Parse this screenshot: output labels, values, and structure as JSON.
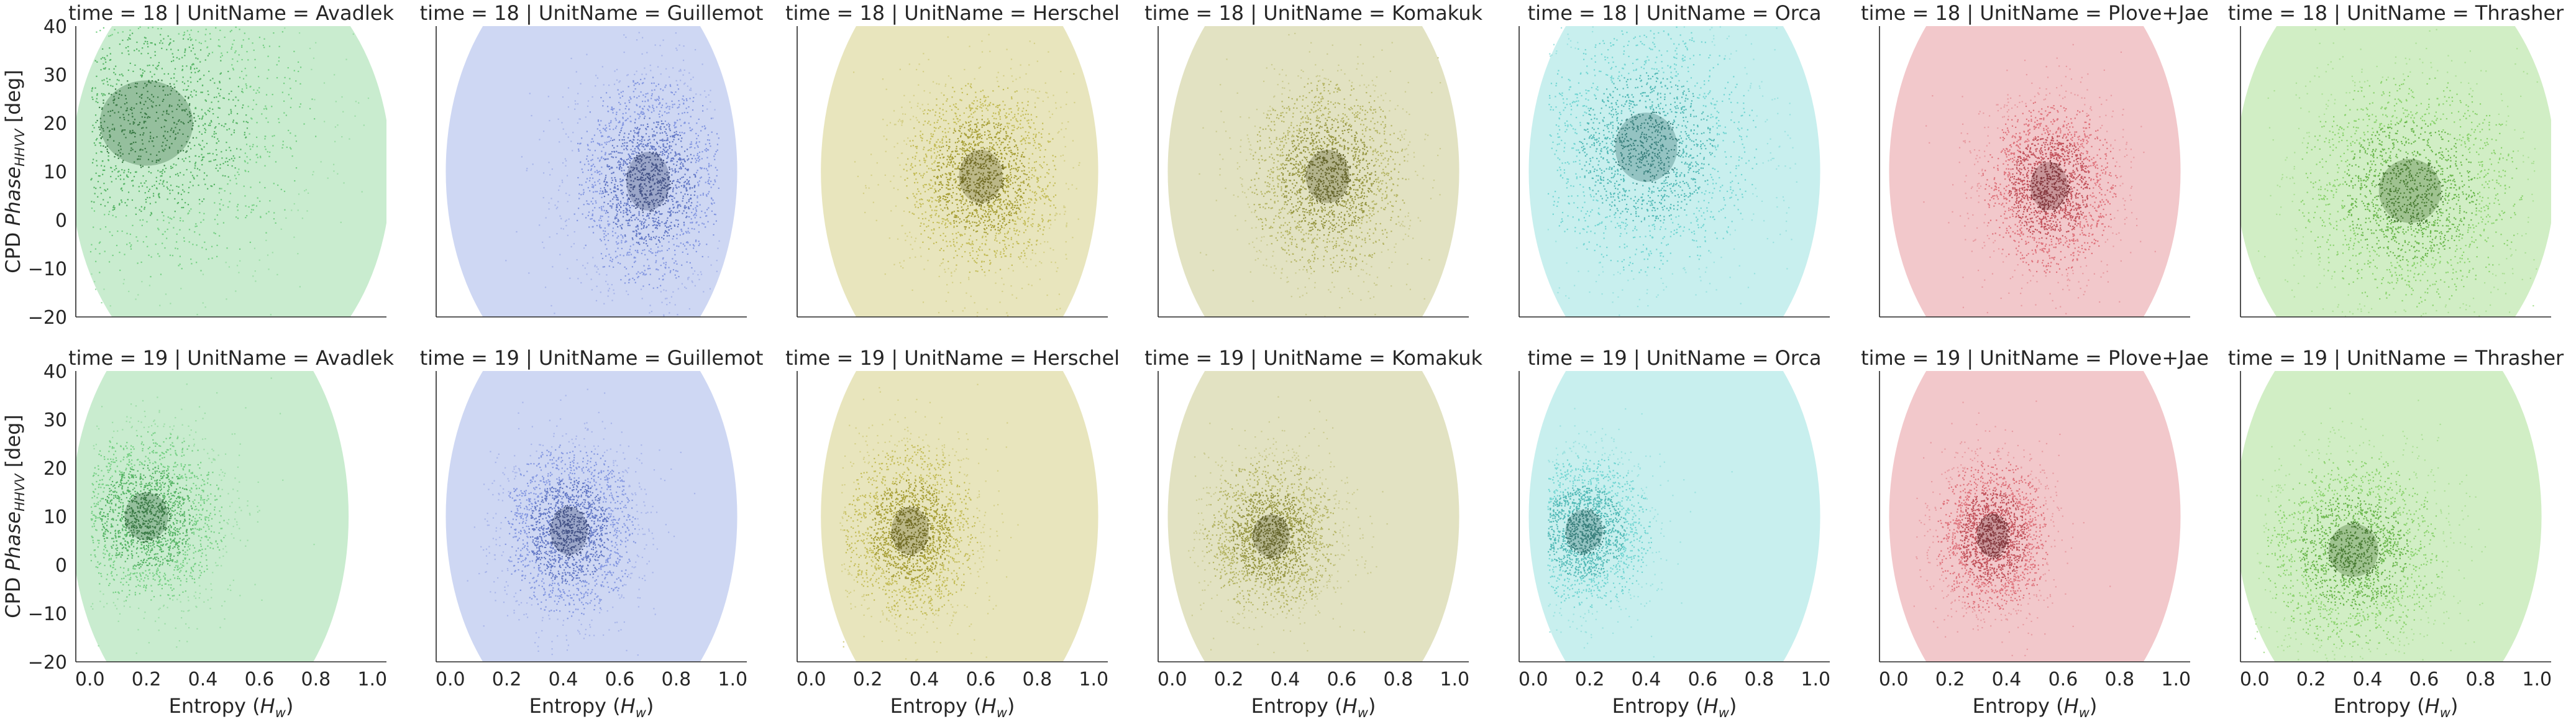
{
  "chart_data": {
    "type": "scatter",
    "layout": "facet grid: rows = time, columns = UnitName, shared axes, y tick labels on first column only, x tick labels on bottom row only",
    "row_var": "time",
    "col_var": "UnitName",
    "rows": [
      18,
      19
    ],
    "cols": [
      "Avadlek",
      "Guillemot",
      "Herschel",
      "Komakuk",
      "Orca",
      "Plove+Jae",
      "Thrasher"
    ],
    "title_template": "{row_var} = {row} | {col_var} = {col}",
    "xlabel": "Entropy (",
    "xlabel_sym": "H",
    "xlabel_sub": "w",
    "xlabel_end": ")",
    "ylabel": "CPD ",
    "ylabel_sym": "Phase",
    "ylabel_sub": "HHVV",
    "ylabel_end": " [deg]",
    "xlim": [
      -0.05,
      1.05
    ],
    "ylim": [
      -20,
      40
    ],
    "xticks": [
      0.0,
      0.2,
      0.4,
      0.6,
      0.8,
      1.0
    ],
    "xtick_labels": [
      "0.0",
      "0.2",
      "0.4",
      "0.6",
      "0.8",
      "1.0"
    ],
    "yticks": [
      -20,
      -10,
      0,
      10,
      20,
      30,
      40
    ],
    "ytick_labels": [
      "−20",
      "−10",
      "0",
      "10",
      "20",
      "30",
      "40"
    ],
    "grid": false,
    "legend": "none",
    "series": [
      {
        "col": "Avadlek",
        "color": "#5fc870"
      },
      {
        "col": "Guillemot",
        "color": "#6f86dc"
      },
      {
        "col": "Herschel",
        "color": "#b9b13c"
      },
      {
        "col": "Komakuk",
        "color": "#a8a84a"
      },
      {
        "col": "Orca",
        "color": "#5ccfcb"
      },
      {
        "col": "Plove+Jae",
        "color": "#d95c66"
      },
      {
        "col": "Thrasher",
        "color": "#76cb54"
      }
    ],
    "density": [
      [
        {
          "x_range": [
            0.0,
            1.0
          ],
          "y_range": [
            -20,
            40
          ],
          "peak": [
            0.2,
            20
          ],
          "spread": [
            0.3,
            16
          ]
        },
        {
          "x_range": [
            0.05,
            0.95
          ],
          "y_range": [
            -20,
            40
          ],
          "peak": [
            0.7,
            8
          ],
          "spread": [
            0.14,
            11
          ]
        },
        {
          "x_range": [
            0.1,
            0.95
          ],
          "y_range": [
            -20,
            40
          ],
          "peak": [
            0.6,
            9
          ],
          "spread": [
            0.14,
            10
          ]
        },
        {
          "x_range": [
            0.05,
            0.95
          ],
          "y_range": [
            -20,
            40
          ],
          "peak": [
            0.55,
            9
          ],
          "spread": [
            0.14,
            10
          ]
        },
        {
          "x_range": [
            0.05,
            0.95
          ],
          "y_range": [
            -20,
            40
          ],
          "peak": [
            0.4,
            15
          ],
          "spread": [
            0.2,
            13
          ]
        },
        {
          "x_range": [
            0.05,
            0.95
          ],
          "y_range": [
            -20,
            40
          ],
          "peak": [
            0.55,
            7
          ],
          "spread": [
            0.12,
            9
          ]
        },
        {
          "x_range": [
            0.0,
            1.0
          ],
          "y_range": [
            -20,
            40
          ],
          "peak": [
            0.55,
            6
          ],
          "spread": [
            0.2,
            12
          ]
        }
      ],
      [
        {
          "x_range": [
            0.0,
            0.85
          ],
          "y_range": [
            -20,
            40
          ],
          "peak": [
            0.2,
            10
          ],
          "spread": [
            0.14,
            9
          ]
        },
        {
          "x_range": [
            0.05,
            0.95
          ],
          "y_range": [
            -20,
            40
          ],
          "peak": [
            0.42,
            7
          ],
          "spread": [
            0.12,
            9
          ]
        },
        {
          "x_range": [
            0.1,
            0.95
          ],
          "y_range": [
            -20,
            40
          ],
          "peak": [
            0.35,
            7
          ],
          "spread": [
            0.12,
            9
          ]
        },
        {
          "x_range": [
            0.05,
            0.95
          ],
          "y_range": [
            -20,
            40
          ],
          "peak": [
            0.35,
            6
          ],
          "spread": [
            0.12,
            8
          ]
        },
        {
          "x_range": [
            0.05,
            0.95
          ],
          "y_range": [
            -20,
            40
          ],
          "peak": [
            0.18,
            7
          ],
          "spread": [
            0.12,
            8
          ]
        },
        {
          "x_range": [
            0.05,
            0.95
          ],
          "y_range": [
            -20,
            40
          ],
          "peak": [
            0.35,
            6
          ],
          "spread": [
            0.1,
            8
          ]
        },
        {
          "x_range": [
            0.0,
            0.95
          ],
          "y_range": [
            -20,
            40
          ],
          "peak": [
            0.35,
            3
          ],
          "spread": [
            0.16,
            10
          ]
        }
      ]
    ]
  }
}
